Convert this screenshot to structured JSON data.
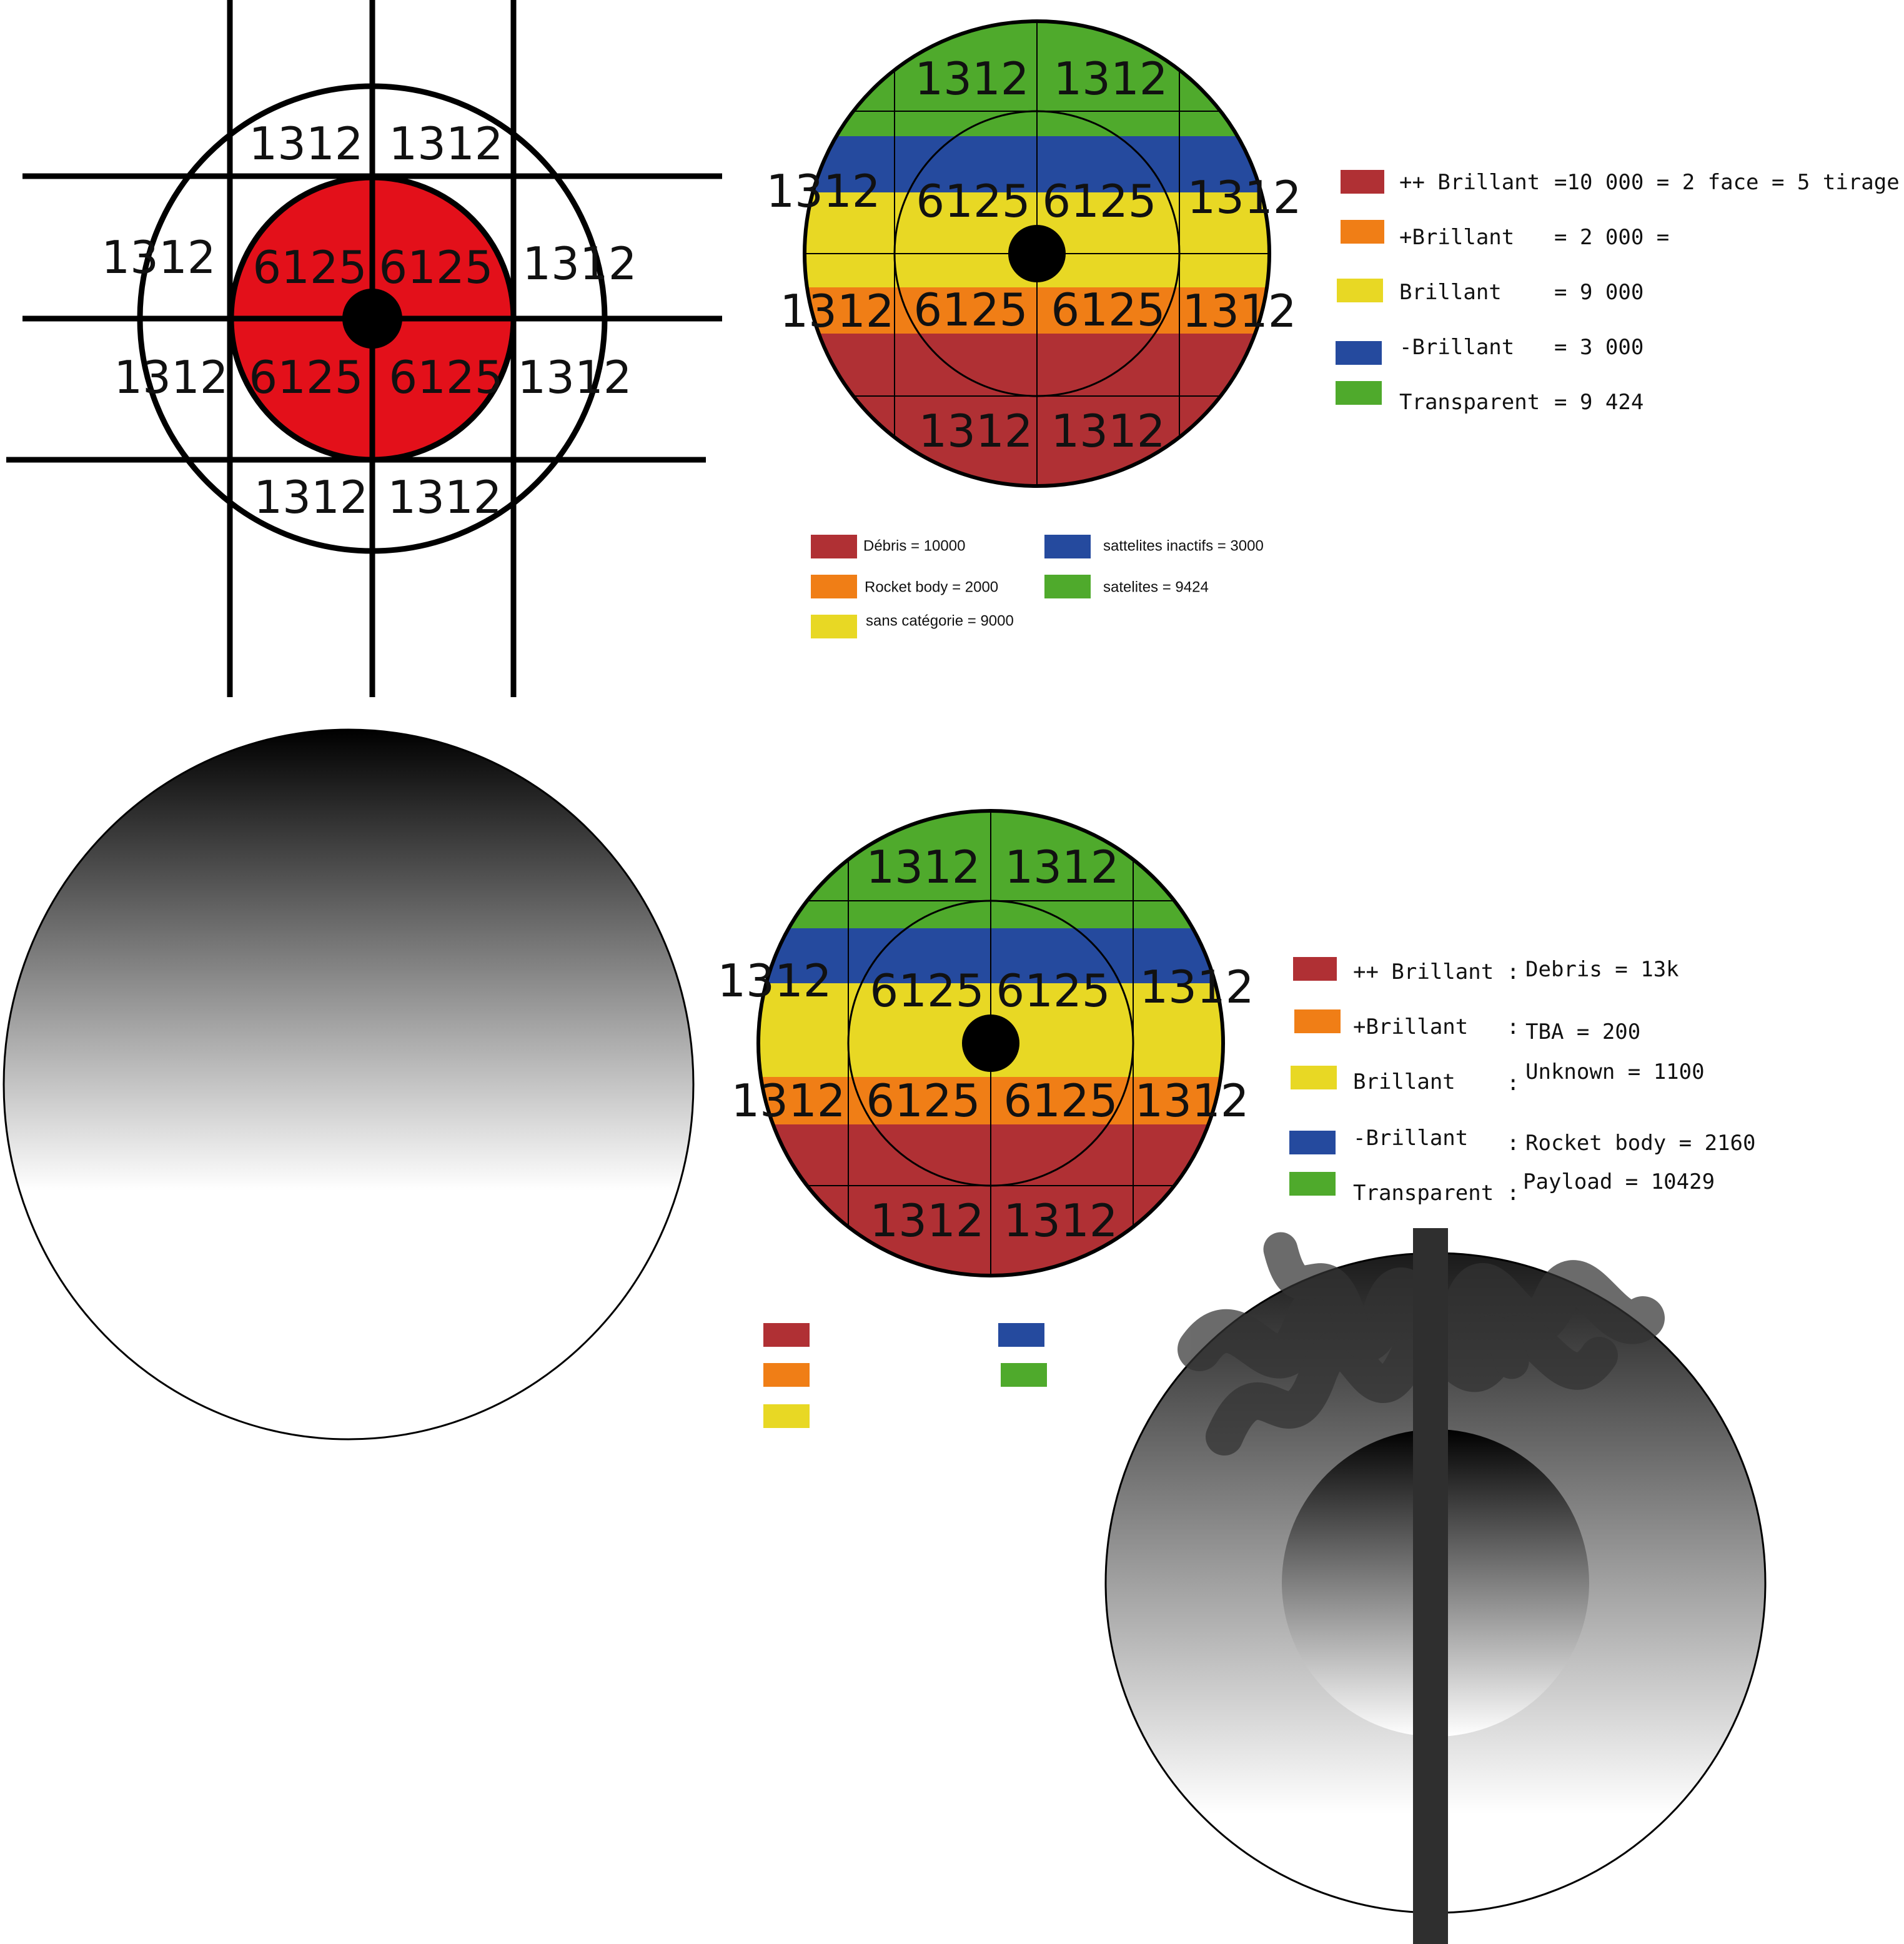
{
  "colors": {
    "red_target": "#e3101a",
    "debris": "#b03034",
    "rocket_body": "#f07e16",
    "unknown": "#e8d824",
    "inactive": "#254a9e",
    "satellites": "#4faa2c",
    "pen": "#2f2f2f"
  },
  "target": {
    "outer_values": [
      "1312",
      "1312",
      "1312",
      "1312",
      "1312",
      "1312",
      "1312",
      "1312"
    ],
    "inner_values": [
      "6125",
      "6125",
      "6125",
      "6125"
    ]
  },
  "wheel_top": {
    "outer_values": [
      "1312",
      "1312",
      "1312",
      "1312",
      "1312",
      "1312",
      "1312",
      "1312"
    ],
    "inner_values": [
      "6125",
      "6125",
      "6125",
      "6125"
    ]
  },
  "wheel_bottom": {
    "outer_values": [
      "1312",
      "1312",
      "1312",
      "1312",
      "1312",
      "1312",
      "1312",
      "1312"
    ],
    "inner_values": [
      "6125",
      "6125",
      "6125",
      "6125"
    ]
  },
  "legend_top": [
    {
      "label": "++ Brillant",
      "value": "=10 000 = 2 face = 5 tirage",
      "color": "#b03034"
    },
    {
      "label": "+Brillant",
      "value": "= 2 000 =",
      "color": "#f07e16"
    },
    {
      "label": "Brillant",
      "value": "= 9 000",
      "color": "#e8d824"
    },
    {
      "label": "-Brillant",
      "value": "= 3 000",
      "color": "#254a9e"
    },
    {
      "label": "Transparent",
      "value": "= 9 424",
      "color": "#4faa2c"
    }
  ],
  "legend_categories": [
    {
      "label": "Débris = 10000",
      "color": "#b03034"
    },
    {
      "label": "Rocket body = 2000",
      "color": "#f07e16"
    },
    {
      "label": "sans catégorie  = 9000",
      "color": "#e8d824"
    },
    {
      "label": "sattelites inactifs = 3000",
      "color": "#254a9e"
    },
    {
      "label": "satelites = 9424",
      "color": "#4faa2c"
    }
  ],
  "legend_bottom": [
    {
      "label": "++ Brillant",
      "sep": ":",
      "value": "Debris = 13k",
      "color": "#b03034"
    },
    {
      "label": "+Brillant",
      "sep": ":",
      "value": "TBA = 200",
      "color": "#f07e16"
    },
    {
      "label": "Brillant",
      "sep": ":",
      "value": "Unknown = 1100",
      "color": "#e8d824"
    },
    {
      "label": "-Brillant",
      "sep": ":",
      "value": "Rocket body = 2160",
      "color": "#254a9e"
    },
    {
      "label": "Transparent",
      "sep": ":",
      "value": "Payload = 10429",
      "color": "#4faa2c"
    }
  ],
  "swatches_empty": [
    "#b03034",
    "#f07e16",
    "#e8d824",
    "#254a9e",
    "#4faa2c"
  ]
}
